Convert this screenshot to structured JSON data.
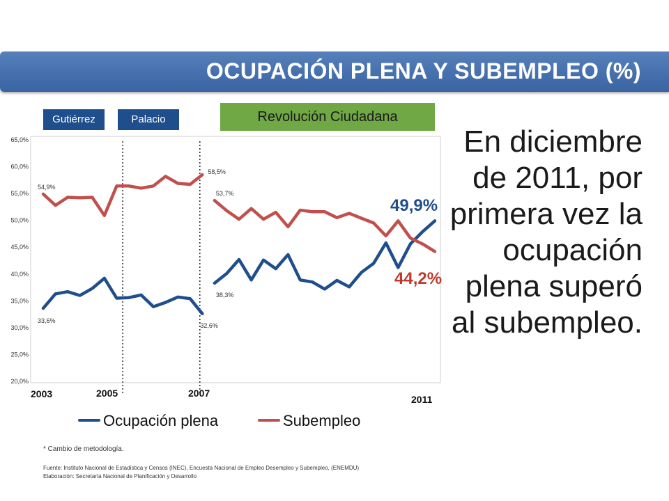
{
  "header": {
    "title": "OCUPACIÓN PLENA Y SUBEMPLEO (%)"
  },
  "eras": {
    "gutierrez": "Gutiérrez",
    "palacio": "Palacio",
    "revolucion": "Revolución Ciudadana"
  },
  "colors": {
    "banner": "#3a64a2",
    "ocupacion": "#1f4e8c",
    "subempleo": "#c0504d",
    "revolucion": "#6fa845"
  },
  "message": {
    "text": "En diciembre de 2011, por primera vez la ocupación plena superó al subempleo",
    "end": "."
  },
  "callouts": {
    "ocupacion_final": "49,9%",
    "subempleo_final": "44,2%"
  },
  "chart_data": {
    "type": "line",
    "ylim": [
      20,
      65
    ],
    "yticks": [
      "20,0%",
      "25,0%",
      "30,0%",
      "35,0%",
      "40,0%",
      "45,0%",
      "50,0%",
      "55,0%",
      "60,0%",
      "65,0%"
    ],
    "year_labels": [
      "2003",
      "2005",
      "2007",
      "2011"
    ],
    "point_count": 33,
    "series": [
      {
        "name": "Ocupación plena",
        "segments": [
          [
            {
              "i": 0,
              "v": 33.6
            },
            {
              "i": 1,
              "v": 36.3
            },
            {
              "i": 2,
              "v": 36.7
            },
            {
              "i": 3,
              "v": 36.0
            },
            {
              "i": 4,
              "v": 37.3
            },
            {
              "i": 5,
              "v": 39.2
            },
            {
              "i": 6,
              "v": 35.5
            },
            {
              "i": 7,
              "v": 35.6
            },
            {
              "i": 8,
              "v": 36.1
            },
            {
              "i": 9,
              "v": 33.9
            },
            {
              "i": 10,
              "v": 34.7
            },
            {
              "i": 11,
              "v": 35.7
            },
            {
              "i": 12,
              "v": 35.4
            },
            {
              "i": 13,
              "v": 32.6
            }
          ],
          [
            {
              "i": 14,
              "v": 38.3
            },
            {
              "i": 15,
              "v": 40.1
            },
            {
              "i": 16,
              "v": 42.7
            },
            {
              "i": 17,
              "v": 38.9
            },
            {
              "i": 18,
              "v": 42.6
            },
            {
              "i": 19,
              "v": 41.0
            },
            {
              "i": 20,
              "v": 43.6
            },
            {
              "i": 21,
              "v": 38.9
            },
            {
              "i": 22,
              "v": 38.5
            },
            {
              "i": 23,
              "v": 37.2
            },
            {
              "i": 24,
              "v": 38.8
            },
            {
              "i": 25,
              "v": 37.6
            },
            {
              "i": 26,
              "v": 40.3
            },
            {
              "i": 27,
              "v": 42.0
            },
            {
              "i": 28,
              "v": 45.8
            },
            {
              "i": 29,
              "v": 41.2
            },
            {
              "i": 30,
              "v": 45.6
            },
            {
              "i": 31,
              "v": 47.9
            },
            {
              "i": 32,
              "v": 49.9
            }
          ]
        ],
        "data_labels": [
          {
            "i": 0,
            "text": "33,6%"
          },
          {
            "i": 13,
            "text": "32,6%"
          },
          {
            "i": 14,
            "text": "38,3%"
          }
        ]
      },
      {
        "name": "Subempleo",
        "segments": [
          [
            {
              "i": 0,
              "v": 54.9
            },
            {
              "i": 1,
              "v": 52.8
            },
            {
              "i": 2,
              "v": 54.3
            },
            {
              "i": 3,
              "v": 54.2
            },
            {
              "i": 4,
              "v": 54.3
            },
            {
              "i": 5,
              "v": 50.9
            },
            {
              "i": 6,
              "v": 56.4
            },
            {
              "i": 7,
              "v": 56.4
            },
            {
              "i": 8,
              "v": 56.0
            },
            {
              "i": 9,
              "v": 56.4
            },
            {
              "i": 10,
              "v": 58.2
            },
            {
              "i": 11,
              "v": 56.9
            },
            {
              "i": 12,
              "v": 56.7
            },
            {
              "i": 13,
              "v": 58.5
            }
          ],
          [
            {
              "i": 14,
              "v": 53.7
            },
            {
              "i": 15,
              "v": 51.8
            },
            {
              "i": 16,
              "v": 50.2
            },
            {
              "i": 17,
              "v": 52.2
            },
            {
              "i": 18,
              "v": 50.2
            },
            {
              "i": 19,
              "v": 51.5
            },
            {
              "i": 20,
              "v": 48.8
            },
            {
              "i": 21,
              "v": 51.9
            },
            {
              "i": 22,
              "v": 51.6
            },
            {
              "i": 23,
              "v": 51.6
            },
            {
              "i": 24,
              "v": 50.5
            },
            {
              "i": 25,
              "v": 51.3
            },
            {
              "i": 26,
              "v": 50.4
            },
            {
              "i": 27,
              "v": 49.5
            },
            {
              "i": 28,
              "v": 47.1
            },
            {
              "i": 29,
              "v": 49.9
            },
            {
              "i": 30,
              "v": 46.7
            },
            {
              "i": 31,
              "v": 45.6
            },
            {
              "i": 32,
              "v": 44.2
            }
          ]
        ],
        "data_labels": [
          {
            "i": 0,
            "text": "54,9%"
          },
          {
            "i": 13,
            "text": "58,5%"
          },
          {
            "i": 14,
            "text": "53,7%"
          }
        ]
      }
    ],
    "vertical_markers": [
      {
        "i": 6.5
      },
      {
        "i": 12.8
      }
    ],
    "legend": "bottom",
    "grid": false
  },
  "footer": {
    "note": "* Cambio de metodología.",
    "source": "Fuente: Instituto Nacional de Estadística y Censos (INEC), Encuesta Nacional de Empleo Desempleo y Subempleo, (ENEMDU)",
    "elaboracion": "Elaboración: Secretaría Nacional de Planificación y Desarrollo"
  }
}
